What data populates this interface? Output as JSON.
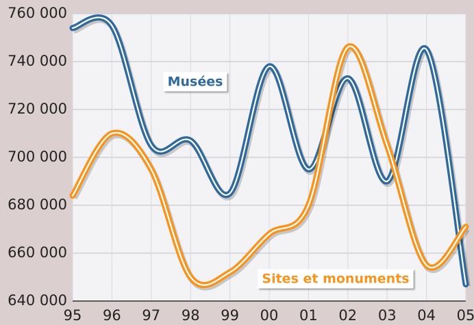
{
  "chart_data": {
    "type": "line",
    "categories": [
      "95",
      "96",
      "97",
      "98",
      "99",
      "00",
      "01",
      "02",
      "03",
      "04",
      "05"
    ],
    "series": [
      {
        "name": "Musées",
        "color": "#2f6a9b",
        "values": [
          754000,
          755000,
          705000,
          707000,
          685000,
          738000,
          695000,
          733000,
          690000,
          745000,
          647000
        ]
      },
      {
        "name": "Sites et monuments",
        "color": "#f7941d",
        "values": [
          684000,
          710000,
          695000,
          650000,
          652000,
          668000,
          680000,
          746000,
          705000,
          655000,
          671000
        ]
      }
    ],
    "ylim": [
      640000,
      760000
    ],
    "yticks": [
      {
        "value": 640000,
        "label": "640 000"
      },
      {
        "value": 660000,
        "label": "660 000"
      },
      {
        "value": 680000,
        "label": "680 000"
      },
      {
        "value": 700000,
        "label": "700 000"
      },
      {
        "value": 720000,
        "label": "720 000"
      },
      {
        "value": 740000,
        "label": "740 000"
      },
      {
        "value": 760000,
        "label": "760 000"
      }
    ],
    "grid": true
  }
}
